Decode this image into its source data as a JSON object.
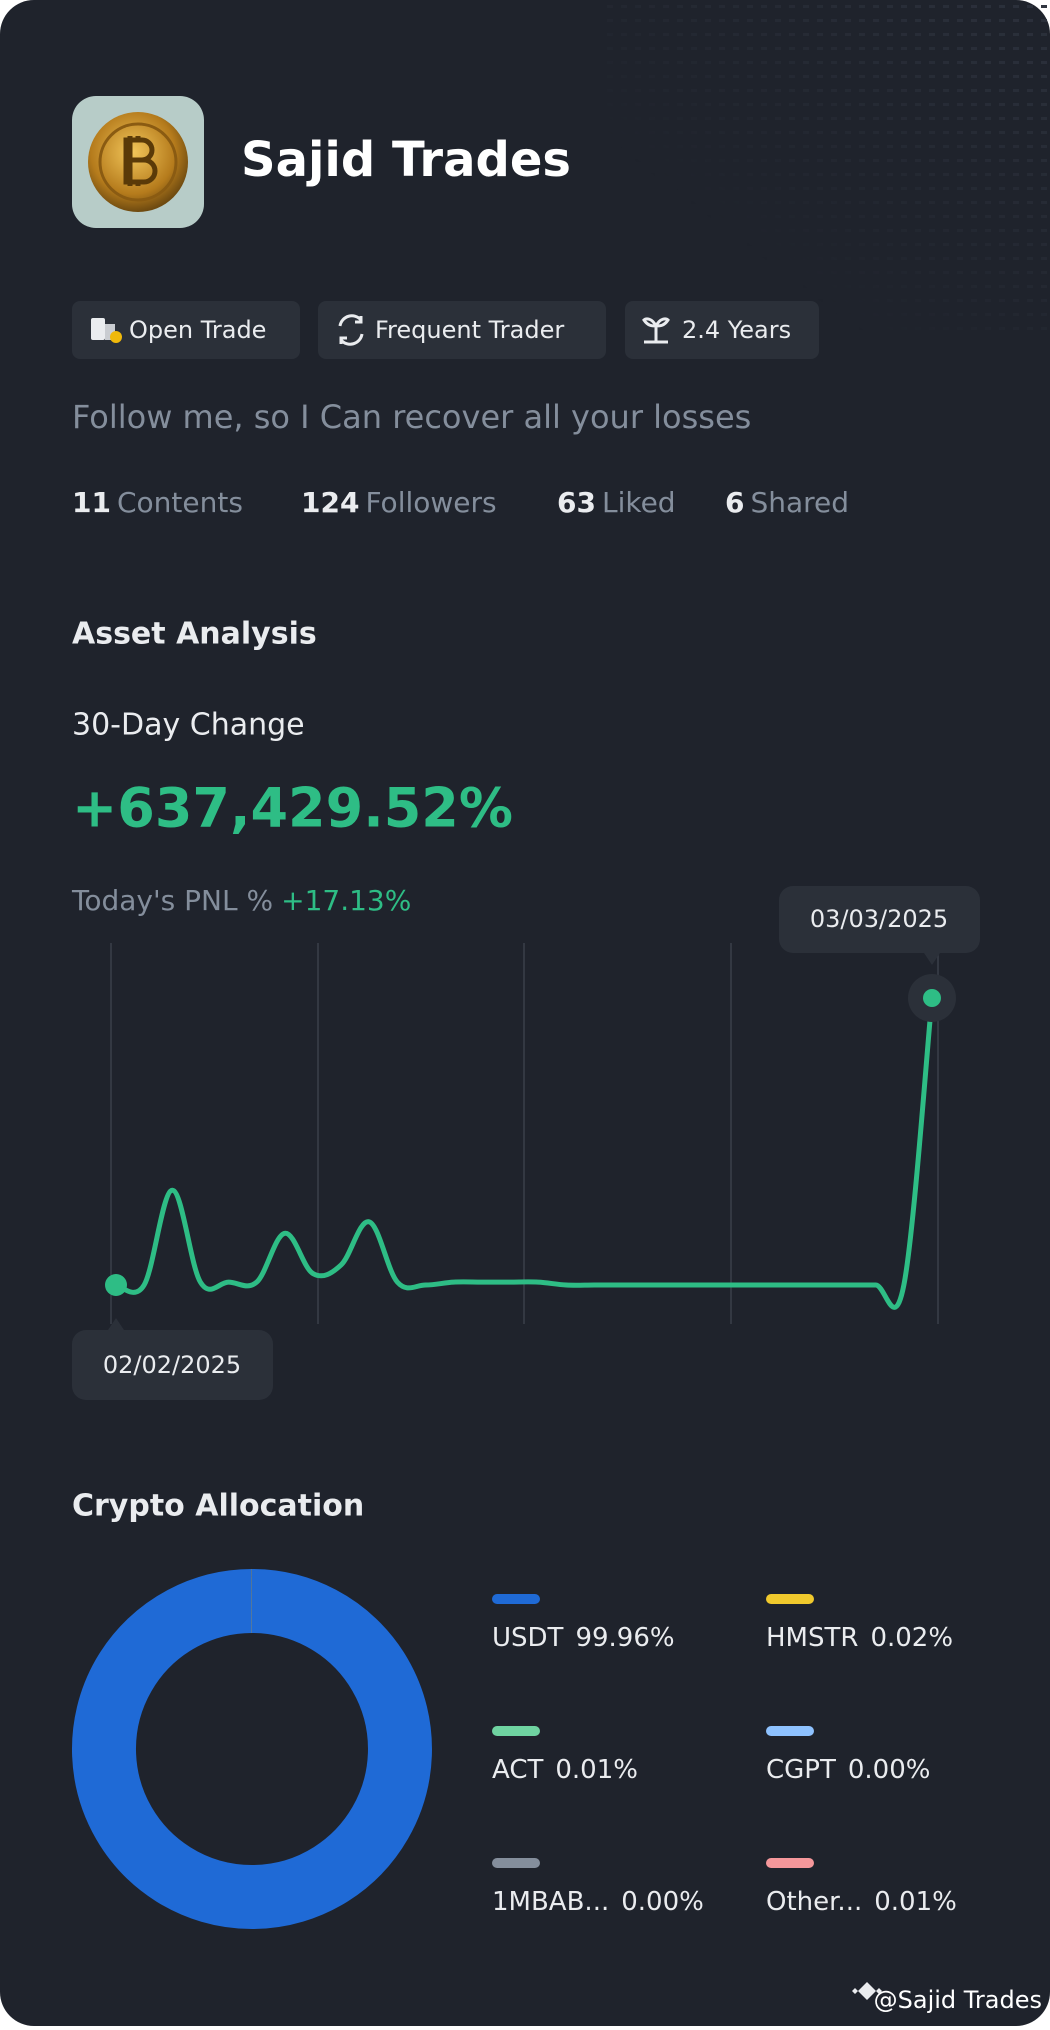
{
  "profile": {
    "name": "Sajid Trades",
    "tags": [
      "Open Trade",
      "Frequent Trader",
      "2.4 Years"
    ],
    "bio": "Follow me, so I Can recover all your losses",
    "stats": [
      {
        "value": 11,
        "label": "Contents"
      },
      {
        "value": 124,
        "label": "Followers"
      },
      {
        "value": 63,
        "label": "Liked"
      },
      {
        "value": 6,
        "label": "Shared"
      }
    ]
  },
  "asset_analysis": {
    "title": "Asset Analysis",
    "change_label": "30-Day Change",
    "change_value": "+637,429.52%",
    "pnl_label": "Today's PNL %",
    "pnl_value": "+17.13%"
  },
  "chart_data": [
    {
      "type": "line",
      "color": "#2ebd85",
      "start_label": "02/02/2025",
      "end_label": "03/03/2025",
      "values": [
        0,
        0,
        33,
        1,
        1,
        1,
        18,
        4,
        7,
        22,
        1,
        0,
        1,
        1,
        1,
        1,
        0,
        0,
        0,
        0,
        0,
        0,
        0,
        0,
        0,
        0,
        0,
        0,
        0,
        100
      ]
    },
    {
      "type": "donut",
      "title": "Crypto Allocation",
      "categories": [
        "USDT",
        "HMSTR",
        "ACT",
        "CGPT",
        "1MBAB...",
        "Other..."
      ],
      "values": [
        99.96,
        0.02,
        0.01,
        0.0,
        0.0,
        0.01
      ],
      "value_labels": [
        "99.96%",
        "0.02%",
        "0.01%",
        "0.00%",
        "0.00%",
        "0.01%"
      ],
      "colors": [
        "#1f6ad6",
        "#f0c92d",
        "#6fd3a1",
        "#8ec2ff",
        "#848e9c",
        "#f5979b"
      ]
    }
  ],
  "watermark": "@Sajid Trades"
}
